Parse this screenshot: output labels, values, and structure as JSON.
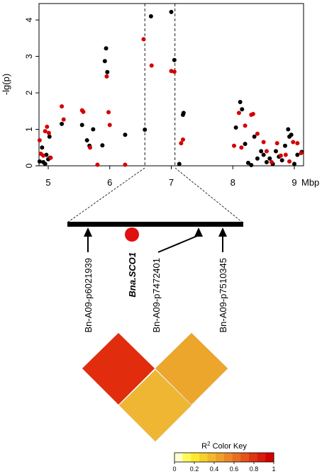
{
  "chart_data": [
    {
      "type": "scatter",
      "title": "",
      "xlabel": "",
      "ylabel": "-lg(p)",
      "x_unit": "Mbp",
      "xlim": [
        4.85,
        9.15
      ],
      "ylim": [
        0,
        4.45
      ],
      "xticks": [
        "5",
        "6",
        "7",
        "8",
        "9"
      ],
      "yticks": [
        "0",
        "1",
        "2",
        "3",
        "4"
      ],
      "grid": false,
      "legend": "none",
      "highlight_region_mbp": [
        6.57,
        7.06
      ],
      "series": [
        {
          "color": "#000000",
          "points": [
            [
              4.86,
              0.12
            ],
            [
              4.9,
              0.5
            ],
            [
              4.92,
              0.1
            ],
            [
              4.95,
              0.05
            ],
            [
              4.97,
              0.3
            ],
            [
              5.0,
              0.18
            ],
            [
              5.02,
              0.8
            ],
            [
              5.03,
              0.22
            ],
            [
              5.22,
              1.15
            ],
            [
              5.55,
              1.12
            ],
            [
              5.63,
              0.7
            ],
            [
              5.67,
              0.55
            ],
            [
              5.73,
              1.0
            ],
            [
              5.88,
              0.56
            ],
            [
              5.92,
              2.87
            ],
            [
              5.94,
              3.22
            ],
            [
              5.96,
              2.57
            ],
            [
              6.25,
              0.85
            ],
            [
              6.57,
              0.99
            ],
            [
              6.67,
              4.1
            ],
            [
              7.0,
              4.22
            ],
            [
              7.05,
              2.9
            ],
            [
              7.13,
              0.05
            ],
            [
              7.19,
              1.4
            ],
            [
              7.2,
              1.45
            ],
            [
              8.05,
              1.05
            ],
            [
              8.12,
              1.75
            ],
            [
              8.15,
              1.55
            ],
            [
              8.2,
              0.6
            ],
            [
              8.25,
              0.08
            ],
            [
              8.3,
              0.02
            ],
            [
              8.35,
              0.8
            ],
            [
              8.4,
              0.2
            ],
            [
              8.46,
              0.4
            ],
            [
              8.5,
              0.3
            ],
            [
              8.55,
              0.1
            ],
            [
              8.6,
              0.2
            ],
            [
              8.65,
              0.05
            ],
            [
              8.7,
              0.4
            ],
            [
              8.75,
              0.25
            ],
            [
              8.8,
              0.15
            ],
            [
              8.85,
              0.55
            ],
            [
              8.9,
              1.0
            ],
            [
              8.92,
              0.8
            ],
            [
              8.95,
              0.85
            ],
            [
              9.0,
              0.05
            ],
            [
              9.05,
              0.3
            ],
            [
              9.12,
              0.38
            ]
          ]
        },
        {
          "color": "#d40000",
          "points": [
            [
              4.86,
              0.7
            ],
            [
              4.88,
              0.33
            ],
            [
              4.92,
              0.28
            ],
            [
              4.95,
              0.95
            ],
            [
              4.98,
              1.07
            ],
            [
              5.01,
              0.9
            ],
            [
              5.04,
              0.22
            ],
            [
              5.22,
              1.63
            ],
            [
              5.25,
              1.27
            ],
            [
              5.55,
              1.52
            ],
            [
              5.57,
              1.48
            ],
            [
              5.68,
              0.5
            ],
            [
              5.8,
              0.03
            ],
            [
              5.95,
              2.45
            ],
            [
              5.98,
              1.47
            ],
            [
              6.0,
              1.12
            ],
            [
              6.25,
              0.03
            ],
            [
              6.55,
              3.47
            ],
            [
              6.68,
              2.75
            ],
            [
              7.0,
              2.6
            ],
            [
              7.05,
              2.58
            ],
            [
              7.16,
              0.62
            ],
            [
              7.19,
              0.72
            ],
            [
              8.02,
              0.55
            ],
            [
              8.1,
              1.45
            ],
            [
              8.14,
              0.5
            ],
            [
              8.2,
              1.1
            ],
            [
              8.3,
              1.4
            ],
            [
              8.33,
              1.42
            ],
            [
              8.4,
              0.88
            ],
            [
              8.5,
              0.65
            ],
            [
              8.55,
              0.4
            ],
            [
              8.63,
              0.1
            ],
            [
              8.72,
              0.62
            ],
            [
              8.78,
              0.28
            ],
            [
              8.86,
              0.3
            ],
            [
              8.92,
              0.12
            ],
            [
              8.98,
              0.65
            ],
            [
              9.05,
              0.62
            ],
            [
              9.11,
              0.35
            ]
          ]
        }
      ]
    },
    {
      "type": "diagram",
      "title": "",
      "markers": [
        {
          "label": "Bn-A09-p6021939",
          "style": "normal"
        },
        {
          "label": "Bna.SCO1",
          "style": "bold-italic",
          "shape": "circle",
          "color": "#e01010"
        },
        {
          "label": "Bn-A09-p7472401",
          "style": "normal"
        },
        {
          "label": "Bn-A09-p7510345",
          "style": "normal"
        }
      ]
    },
    {
      "type": "heatmap",
      "title": "",
      "metric": "R2",
      "cells": [
        {
          "pair": [
            "Bn-A09-p6021939",
            "Bn-A09-p7472401"
          ],
          "r2": 0.97,
          "color": "#e22c0e"
        },
        {
          "pair": [
            "Bn-A09-p7472401",
            "Bn-A09-p7510345"
          ],
          "r2": 0.72,
          "color": "#eda62c"
        },
        {
          "pair": [
            "Bn-A09-p6021939",
            "Bn-A09-p7510345"
          ],
          "r2": 0.67,
          "color": "#efb633"
        }
      ],
      "color_key": {
        "title": "R",
        "title_sup": "2",
        "title_rest": " Color Key",
        "ticks": [
          "0",
          "0.2",
          "0.4",
          "0.6",
          "0.8",
          "1"
        ],
        "colors": [
          "#ffffcc",
          "#fffa5a",
          "#fde830",
          "#f8d02a",
          "#f2b82b",
          "#eea02b",
          "#ea8828",
          "#e66e22",
          "#e2541a",
          "#dd3612",
          "#d81c0c",
          "#d40000"
        ]
      }
    }
  ]
}
